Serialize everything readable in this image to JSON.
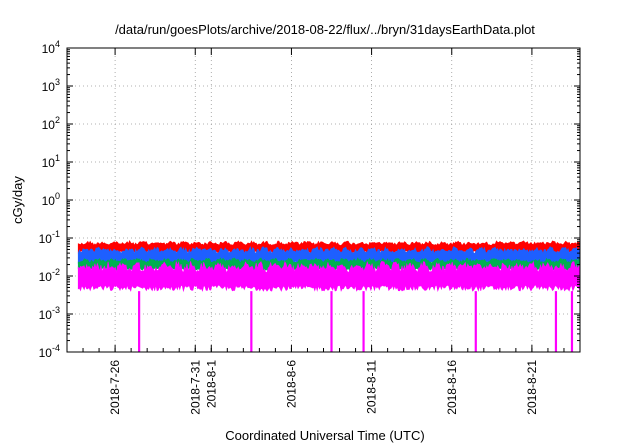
{
  "chart_data": {
    "type": "line",
    "title": "/data/run/goesPlots/archive/2018-08-22/flux/../bryn/31daysEarthData.plot",
    "xlabel": "Coordinated Universal Time (UTC)",
    "ylabel": "cGy/day",
    "yscale": "log",
    "ylim": [
      0.0001,
      10000
    ],
    "xlim": [
      "2018-07-23",
      "2018-08-24"
    ],
    "grid": true,
    "y_ticks": [
      {
        "value": 0.0001,
        "base": "10",
        "exp": "-4"
      },
      {
        "value": 0.001,
        "base": "10",
        "exp": "-3"
      },
      {
        "value": 0.01,
        "base": "10",
        "exp": "-2"
      },
      {
        "value": 0.1,
        "base": "10",
        "exp": "-1"
      },
      {
        "value": 1,
        "base": "10",
        "exp": "0"
      },
      {
        "value": 10,
        "base": "10",
        "exp": "1"
      },
      {
        "value": 100,
        "base": "10",
        "exp": "2"
      },
      {
        "value": 1000,
        "base": "10",
        "exp": "3"
      },
      {
        "value": 10000,
        "base": "10",
        "exp": "4"
      }
    ],
    "x_ticks": [
      {
        "date": "2018-07-26",
        "label": "2018-7-26"
      },
      {
        "date": "2018-07-31",
        "label": "2018-7-31"
      },
      {
        "date": "2018-08-01",
        "label": "2018-8-1"
      },
      {
        "date": "2018-08-06",
        "label": "2018-8-6"
      },
      {
        "date": "2018-08-11",
        "label": "2018-8-11"
      },
      {
        "date": "2018-08-16",
        "label": "2018-8-16"
      },
      {
        "date": "2018-08-21",
        "label": "2018-8-21"
      }
    ],
    "series": [
      {
        "color": "#ff0000",
        "low": 0.04,
        "high": 0.085
      },
      {
        "color": "#1e5fff",
        "low": 0.02,
        "high": 0.06
      },
      {
        "color": "#00b050",
        "low": 0.014,
        "high": 0.03
      },
      {
        "color": "#ff00ff",
        "low": 0.004,
        "high": 0.025
      }
    ],
    "dropouts": [
      "2018-07-27",
      "2018-08-03",
      "2018-08-08",
      "2018-08-10",
      "2018-08-17",
      "2018-08-22",
      "2018-08-23"
    ]
  }
}
